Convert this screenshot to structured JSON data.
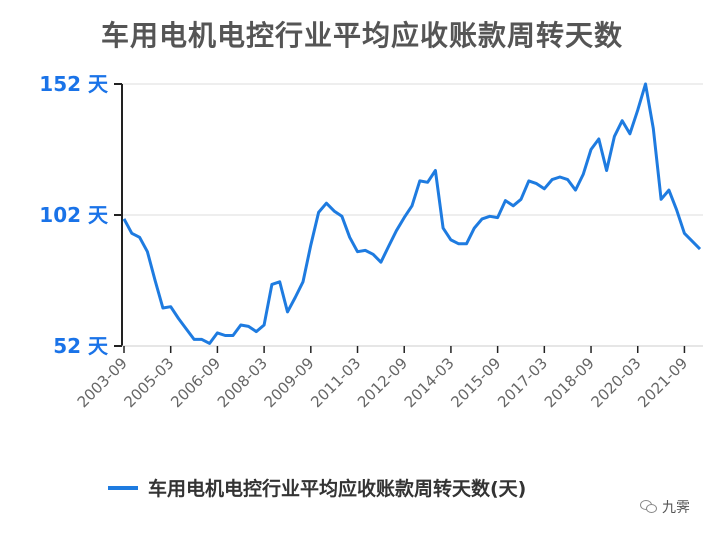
{
  "chart_data": {
    "type": "line",
    "title": "车用电机电控行业平均应收账款周转天数",
    "y_tick_labels": [
      "52 天",
      "102 天",
      "152 天"
    ],
    "y_ticks": [
      52,
      102,
      152
    ],
    "ylim": [
      52,
      152
    ],
    "x_tick_labels": [
      "2003-09",
      "2005-03",
      "2006-09",
      "2008-03",
      "2009-09",
      "2011-03",
      "2012-09",
      "2014-03",
      "2015-09",
      "2017-03",
      "2018-09",
      "2020-03",
      "2021-09"
    ],
    "series": [
      {
        "name": "车用电机电控行业平均应收账款周转天数(天)",
        "color": "#1e7be0",
        "values": [
          100.5,
          95,
          93.5,
          88,
          77,
          66.5,
          67,
          62.5,
          58.5,
          54.5,
          54.5,
          53,
          57,
          56,
          56,
          60,
          59.5,
          57.5,
          60,
          75.5,
          76.5,
          65,
          70.5,
          76.5,
          90.5,
          103,
          106.5,
          103.5,
          101.5,
          93.5,
          88,
          88.5,
          87,
          84,
          90,
          96,
          101,
          105.5,
          115,
          114.5,
          119,
          97,
          92.5,
          91,
          91,
          97,
          100.5,
          101.5,
          101,
          107.5,
          105.5,
          108,
          115,
          114,
          112,
          115.5,
          116.5,
          115.5,
          111.5,
          117.5,
          127,
          131,
          119,
          132,
          138,
          133,
          142,
          152,
          135,
          108,
          111.5,
          104,
          95,
          92,
          89
        ]
      }
    ],
    "legend": "bottom",
    "watermark": "九霁"
  }
}
